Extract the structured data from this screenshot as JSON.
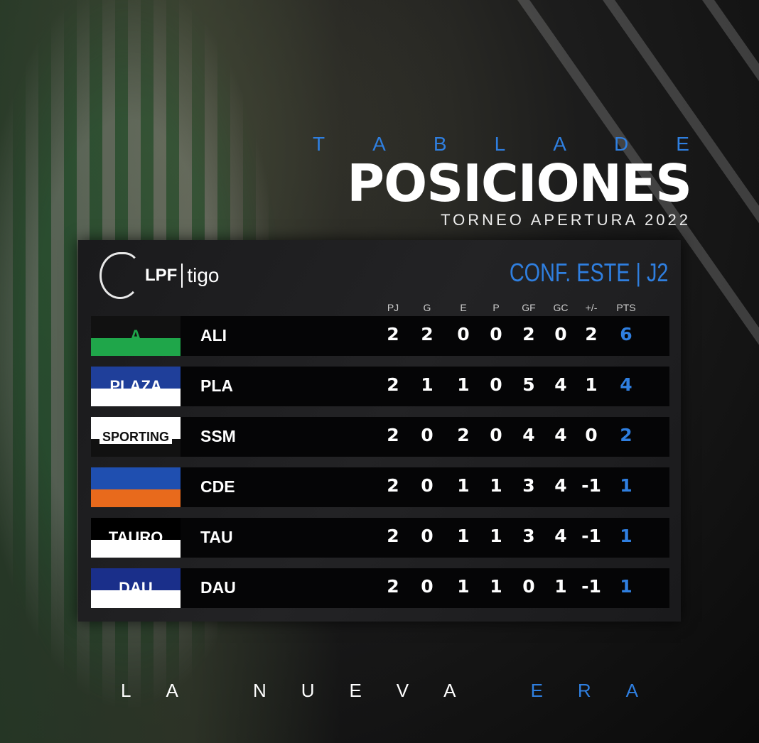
{
  "title": {
    "line1": "TABLA DE",
    "line2": "POSICIONES",
    "subtitle": "TORNEO APERTURA 2022"
  },
  "brand": {
    "league": "LPF",
    "sponsor": "tigo"
  },
  "conference": "CONF. ESTE | J2",
  "columns": [
    "PJ",
    "G",
    "E",
    "P",
    "GF",
    "GC",
    "+/-",
    "PTS"
  ],
  "teams": [
    {
      "abbr": "ALI",
      "crest": "A",
      "crest_colors": [
        "#111",
        "#1fa64a"
      ],
      "stats": [
        "2",
        "2",
        "0",
        "0",
        "2",
        "0",
        "2",
        "6"
      ]
    },
    {
      "abbr": "PLA",
      "crest": "PLAZA",
      "crest_colors": [
        "#1f3f9a",
        "#fff"
      ],
      "stats": [
        "2",
        "1",
        "1",
        "0",
        "5",
        "4",
        "1",
        "4"
      ]
    },
    {
      "abbr": "SSM",
      "crest": "SPORTING",
      "crest_colors": [
        "#fff",
        "#111"
      ],
      "stats": [
        "2",
        "0",
        "2",
        "0",
        "4",
        "4",
        "0",
        "2"
      ]
    },
    {
      "abbr": "CDE",
      "crest": "",
      "crest_colors": [
        "#1f4fb0",
        "#e86a1c"
      ],
      "stats": [
        "2",
        "0",
        "1",
        "1",
        "3",
        "4",
        "-1",
        "1"
      ]
    },
    {
      "abbr": "TAU",
      "crest": "TAURO",
      "crest_colors": [
        "#000",
        "#fff"
      ],
      "stats": [
        "2",
        "0",
        "1",
        "1",
        "3",
        "4",
        "-1",
        "1"
      ]
    },
    {
      "abbr": "DAU",
      "crest": "DAU",
      "crest_colors": [
        "#1a2f8a",
        "#fff"
      ],
      "stats": [
        "2",
        "0",
        "1",
        "1",
        "0",
        "1",
        "-1",
        "1"
      ]
    }
  ],
  "footer": {
    "letters_white": [
      "L",
      "A",
      "N",
      "U",
      "E",
      "V",
      "A"
    ],
    "letters_blue": [
      "E",
      "R",
      "A"
    ]
  },
  "colors": {
    "accent": "#2f7fe0",
    "panel": "#1e1e20",
    "row": "#050506"
  }
}
